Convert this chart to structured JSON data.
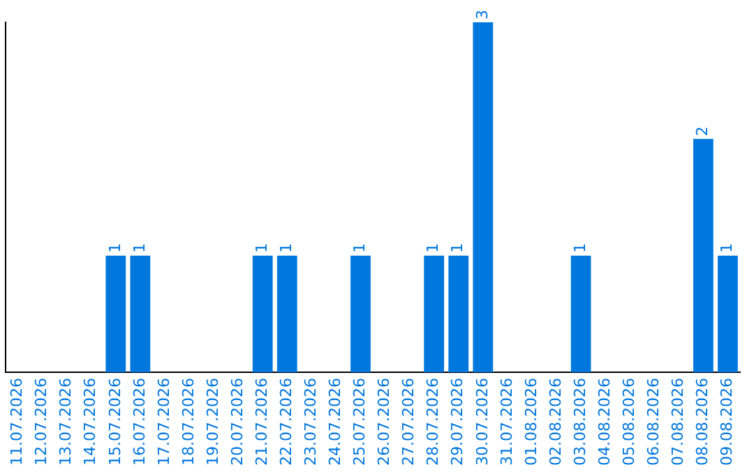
{
  "chart_data": {
    "type": "bar",
    "categories": [
      "11.07.2026",
      "12.07.2026",
      "13.07.2026",
      "14.07.2026",
      "15.07.2026",
      "16.07.2026",
      "17.07.2026",
      "18.07.2026",
      "19.07.2026",
      "20.07.2026",
      "21.07.2026",
      "22.07.2026",
      "23.07.2026",
      "24.07.2026",
      "25.07.2026",
      "26.07.2026",
      "27.07.2026",
      "28.07.2026",
      "29.07.2026",
      "30.07.2026",
      "31.07.2026",
      "01.08.2026",
      "02.08.2026",
      "03.08.2026",
      "04.08.2026",
      "05.08.2026",
      "06.08.2026",
      "07.08.2026",
      "08.08.2026",
      "09.08.2026"
    ],
    "values": [
      0,
      0,
      0,
      0,
      1,
      1,
      0,
      0,
      0,
      0,
      1,
      1,
      0,
      0,
      1,
      0,
      0,
      1,
      1,
      3,
      0,
      0,
      0,
      1,
      0,
      0,
      0,
      0,
      2,
      1
    ],
    "value_labels": [
      null,
      null,
      null,
      null,
      "1",
      "1",
      null,
      null,
      null,
      null,
      "1",
      "1",
      null,
      null,
      "1",
      null,
      null,
      "1",
      "1",
      "3",
      null,
      null,
      null,
      "1",
      null,
      null,
      null,
      null,
      "2",
      "1"
    ],
    "color": "#0077dd",
    "ylim": [
      0,
      3
    ],
    "grid": false,
    "legend": false,
    "tick_labels": "x"
  }
}
